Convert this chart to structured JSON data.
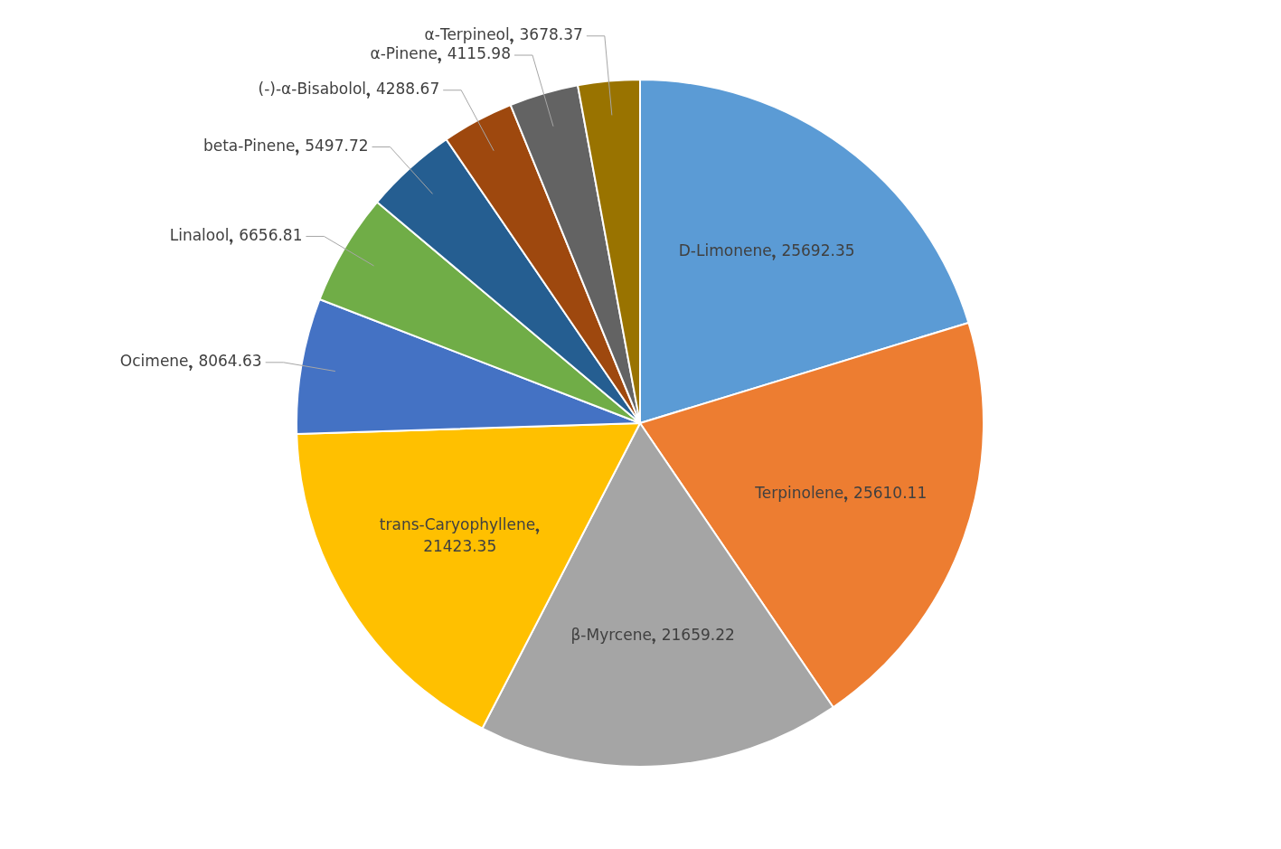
{
  "chart_data": {
    "type": "pie",
    "categories": [
      "D-Limonene",
      "Terpinolene",
      "β-Myrcene",
      "trans-Caryophyllene",
      "Ocimene",
      "Linalool",
      "beta-Pinene",
      "(-)-α-Bisabolol",
      "α-Pinene",
      "α-Terpineol"
    ],
    "values": [
      25692.35,
      25610.11,
      21659.22,
      21423.35,
      8064.63,
      6656.81,
      5497.72,
      4288.67,
      4115.98,
      3678.37
    ],
    "colors": [
      "#5b9bd5",
      "#ed7d31",
      "#a5a5a5",
      "#ffc000",
      "#4472c4",
      "#70ad47",
      "#255e91",
      "#9e480e",
      "#636363",
      "#997300"
    ],
    "data_labels": true,
    "legend": false
  }
}
